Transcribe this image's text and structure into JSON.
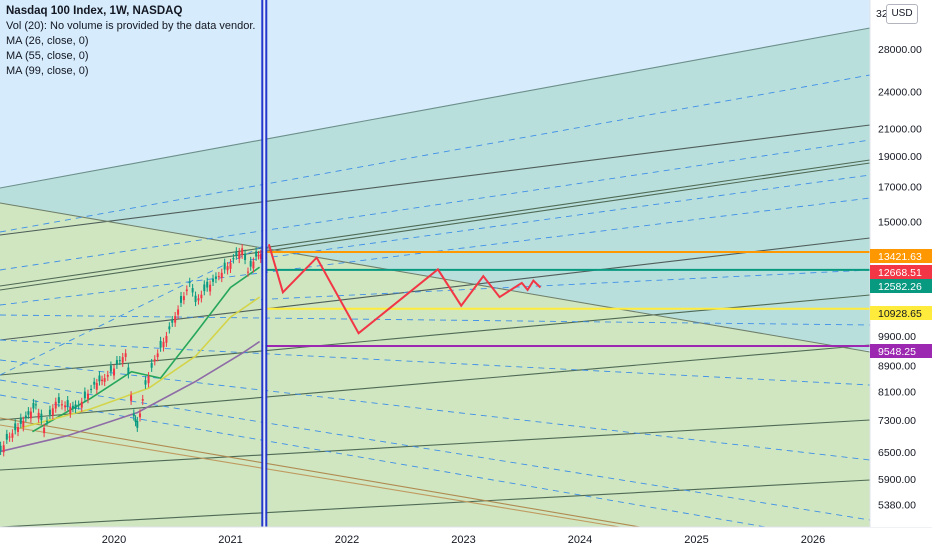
{
  "legend": {
    "title": "Nasdaq 100 Index, 1W, NASDAQ",
    "vol": "Vol (20): No volume is provided by the data vendor.",
    "ma1": "MA (26, close, 0)",
    "ma2": "MA (55, close, 0)",
    "ma3": "MA (99, close, 0)"
  },
  "currency_button": "USD",
  "chart_data": {
    "type": "line",
    "title": "Nasdaq 100 Index, 1W, NASDAQ",
    "y_scale": "log",
    "x_ticks": [
      "2020",
      "2021",
      "2022",
      "2023",
      "2024",
      "2025",
      "2026"
    ],
    "y_ticks": [
      "28000.00",
      "24000.00",
      "21000.00",
      "19000.00",
      "17000.00",
      "15000.00",
      "9900.00",
      "8900.00",
      "8100.00",
      "7300.00",
      "6500.00",
      "5900.00",
      "5380.00"
    ],
    "y_top_partial": "32",
    "price_labels": [
      {
        "value": "13421.63",
        "color": "#ff9800"
      },
      {
        "value": "12668.51",
        "color": "#f23645"
      },
      {
        "value": "12582.26",
        "color": "#089981"
      },
      {
        "value": "10928.65",
        "color": "#ffeb3b"
      },
      {
        "value": "9548.25",
        "color": "#9c27b0"
      }
    ],
    "horizontal_levels": [
      13421.63,
      12582.26,
      10928.65,
      9548.25
    ],
    "projection_path": [
      {
        "x": 2021.33,
        "y": 13800
      },
      {
        "x": 2021.45,
        "y": 11600
      },
      {
        "x": 2021.74,
        "y": 13150
      },
      {
        "x": 2022.1,
        "y": 10000
      },
      {
        "x": 2022.78,
        "y": 12600
      },
      {
        "x": 2022.98,
        "y": 11050
      },
      {
        "x": 2023.17,
        "y": 12300
      },
      {
        "x": 2023.31,
        "y": 11400
      },
      {
        "x": 2023.5,
        "y": 12000
      },
      {
        "x": 2023.55,
        "y": 11700
      },
      {
        "x": 2023.6,
        "y": 12100
      },
      {
        "x": 2023.66,
        "y": 11800
      }
    ],
    "price_series": [
      {
        "x": 2019.0,
        "y": 6400
      },
      {
        "x": 2019.08,
        "y": 6800
      },
      {
        "x": 2019.2,
        "y": 7200
      },
      {
        "x": 2019.33,
        "y": 7700
      },
      {
        "x": 2019.4,
        "y": 7100
      },
      {
        "x": 2019.5,
        "y": 7800
      },
      {
        "x": 2019.58,
        "y": 7700
      },
      {
        "x": 2019.67,
        "y": 7600
      },
      {
        "x": 2019.75,
        "y": 7900
      },
      {
        "x": 2019.83,
        "y": 8300
      },
      {
        "x": 2019.92,
        "y": 8500
      },
      {
        "x": 2020.0,
        "y": 8800
      },
      {
        "x": 2020.1,
        "y": 9300
      },
      {
        "x": 2020.17,
        "y": 7400
      },
      {
        "x": 2020.2,
        "y": 7100
      },
      {
        "x": 2020.27,
        "y": 8300
      },
      {
        "x": 2020.35,
        "y": 9100
      },
      {
        "x": 2020.45,
        "y": 9900
      },
      {
        "x": 2020.55,
        "y": 10900
      },
      {
        "x": 2020.65,
        "y": 12000
      },
      {
        "x": 2020.7,
        "y": 11200
      },
      {
        "x": 2020.8,
        "y": 11800
      },
      {
        "x": 2020.9,
        "y": 12300
      },
      {
        "x": 2021.0,
        "y": 12900
      },
      {
        "x": 2021.1,
        "y": 13600
      },
      {
        "x": 2021.15,
        "y": 12500
      },
      {
        "x": 2021.22,
        "y": 13200
      },
      {
        "x": 2021.28,
        "y": 13400
      }
    ],
    "ma_series": [
      {
        "name": "MA (26, close, 0)",
        "color": "#26a65b",
        "points": [
          {
            "x": 2019.3,
            "y": 7000
          },
          {
            "x": 2019.8,
            "y": 7900
          },
          {
            "x": 2020.15,
            "y": 8700
          },
          {
            "x": 2020.4,
            "y": 8500
          },
          {
            "x": 2020.7,
            "y": 10000
          },
          {
            "x": 2021.0,
            "y": 11800
          },
          {
            "x": 2021.25,
            "y": 12700
          }
        ]
      },
      {
        "name": "MA (55, close, 0)",
        "color": "#d4d44a",
        "points": [
          {
            "x": 2019.2,
            "y": 7100
          },
          {
            "x": 2019.8,
            "y": 7600
          },
          {
            "x": 2020.3,
            "y": 8200
          },
          {
            "x": 2020.7,
            "y": 9200
          },
          {
            "x": 2021.0,
            "y": 10600
          },
          {
            "x": 2021.25,
            "y": 11400
          }
        ]
      },
      {
        "name": "MA (99, close, 0)",
        "color": "#8e6aa6",
        "points": [
          {
            "x": 2019.0,
            "y": 6500
          },
          {
            "x": 2019.6,
            "y": 6900
          },
          {
            "x": 2020.2,
            "y": 7500
          },
          {
            "x": 2020.7,
            "y": 8400
          },
          {
            "x": 2021.1,
            "y": 9300
          },
          {
            "x": 2021.25,
            "y": 9700
          }
        ]
      }
    ],
    "vertical_marker": {
      "x": 2021.29,
      "color": "#2962ff"
    },
    "xlim": [
      2019.0,
      2026.5
    ],
    "ylim": [
      5100,
      32000
    ]
  }
}
